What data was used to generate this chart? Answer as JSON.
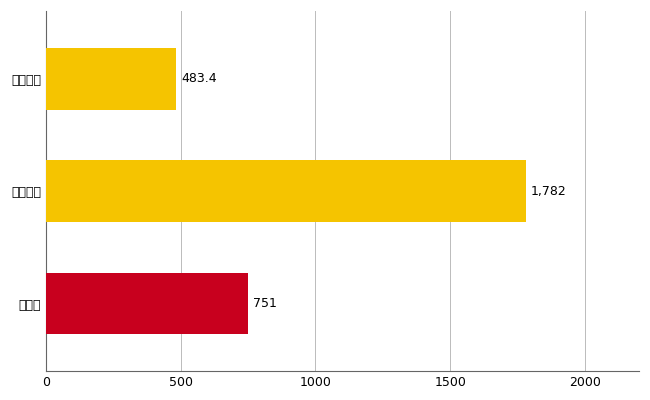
{
  "categories": [
    "千葉県",
    "全国最大",
    "全国平均"
  ],
  "values": [
    751,
    1782,
    483.4
  ],
  "bar_colors": [
    "#C8001E",
    "#F5C400",
    "#F5C400"
  ],
  "bar_labels": [
    "751",
    "1,782",
    "483.4"
  ],
  "xlim": [
    0,
    2200
  ],
  "xticks": [
    0,
    500,
    1000,
    1500,
    2000
  ],
  "background_color": "#ffffff",
  "grid_color": "#bbbbbb",
  "bar_height": 0.55,
  "label_fontsize": 9,
  "tick_fontsize": 9,
  "figsize": [
    6.5,
    4.0
  ],
  "dpi": 100
}
